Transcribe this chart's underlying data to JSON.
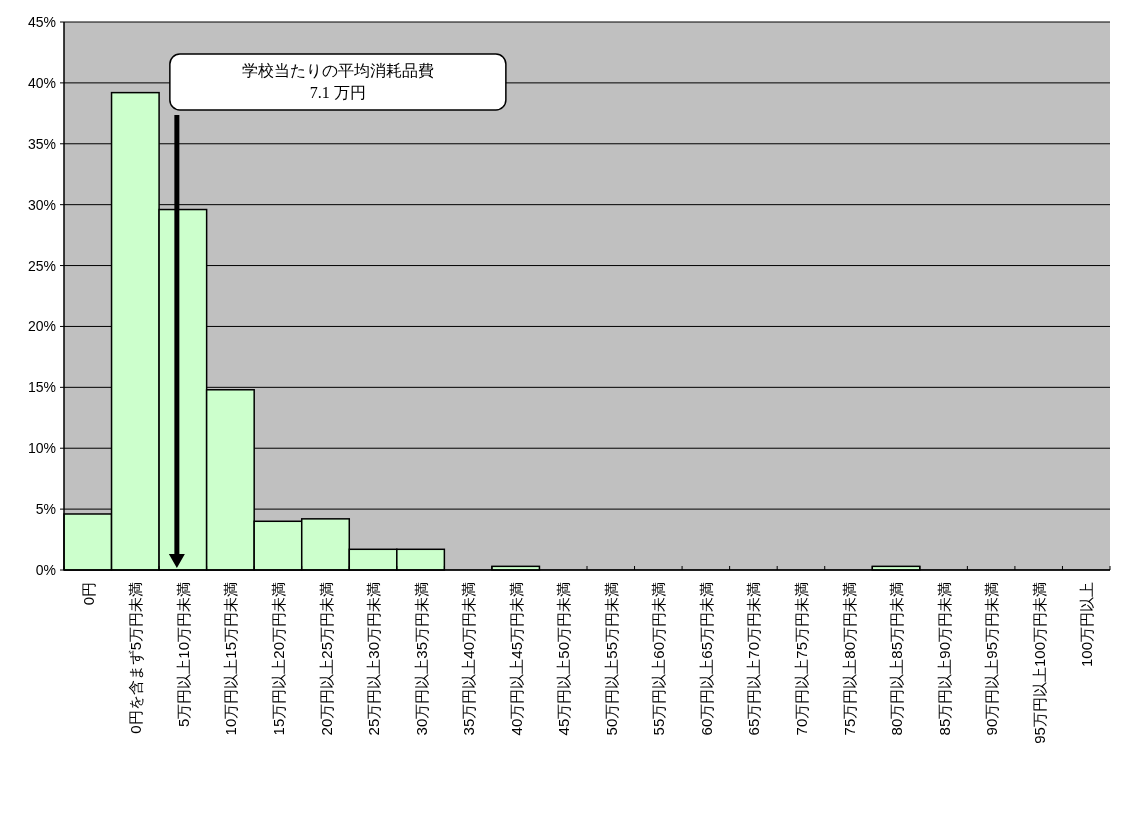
{
  "chart_data": {
    "type": "bar",
    "categories": [
      "0円",
      "0円を含まず5万円未満",
      "5万円以上10万円未満",
      "10万円以上15万円未満",
      "15万円以上20万円未満",
      "20万円以上25万円未満",
      "25万円以上30万円未満",
      "30万円以上35万円未満",
      "35万円以上40万円未満",
      "40万円以上45万円未満",
      "45万円以上50万円未満",
      "50万円以上55万円未満",
      "55万円以上60万円未満",
      "60万円以上65万円未満",
      "65万円以上70万円未満",
      "70万円以上75万円未満",
      "75万円以上80万円未満",
      "80万円以上85万円未満",
      "85万円以上90万円未満",
      "90万円以上95万円未満",
      "95万円以上100万円未満",
      "100万円以上"
    ],
    "values": [
      4.6,
      39.2,
      29.6,
      14.8,
      4.0,
      4.2,
      1.7,
      1.7,
      0,
      0.3,
      0,
      0,
      0,
      0,
      0,
      0,
      0,
      0.3,
      0,
      0,
      0,
      0
    ],
    "color": "#ccffcc",
    "ylim": [
      0,
      45
    ],
    "yticks": [
      {
        "value": 0,
        "label": "0%"
      },
      {
        "value": 5,
        "label": "5%"
      },
      {
        "value": 10,
        "label": "10%"
      },
      {
        "value": 15,
        "label": "15%"
      },
      {
        "value": 20,
        "label": "20%"
      },
      {
        "value": 25,
        "label": "25%"
      },
      {
        "value": 30,
        "label": "30%"
      },
      {
        "value": 35,
        "label": "35%"
      },
      {
        "value": 40,
        "label": "40%"
      },
      {
        "value": 45,
        "label": "45%"
      }
    ],
    "grid": "y",
    "annotations": [
      "学校当たりの平均消耗品費\n7.1 万円"
    ]
  }
}
